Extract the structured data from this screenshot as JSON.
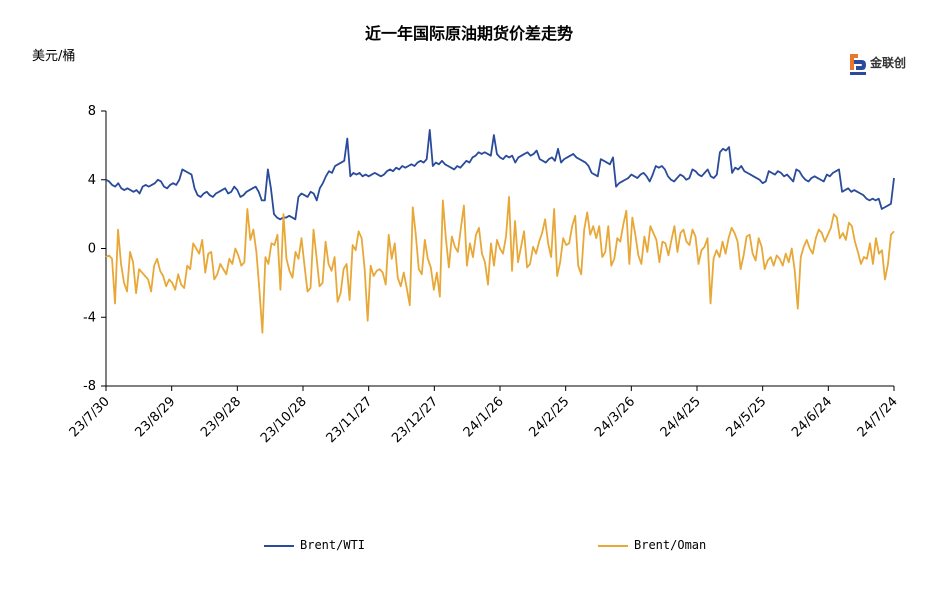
{
  "chart_data": {
    "type": "line",
    "title": "近一年国际原油期货价差走势",
    "ylabel": "美元/桶",
    "ylim": [
      -8,
      8
    ],
    "yticks": [
      8,
      4,
      0,
      -4,
      -8
    ],
    "x_tick_labels": [
      "23/7/30",
      "23/8/29",
      "23/9/28",
      "23/10/28",
      "23/11/27",
      "23/12/27",
      "24/1/26",
      "24/2/25",
      "24/3/26",
      "24/4/25",
      "24/5/25",
      "24/6/24",
      "24/7/24"
    ],
    "legend_position": "bottom",
    "grid": false,
    "series": [
      {
        "name": "Brent/WTI",
        "color": "#2a4b9b",
        "values": [
          4.0,
          3.9,
          3.7,
          3.6,
          3.8,
          3.5,
          3.4,
          3.5,
          3.4,
          3.3,
          3.4,
          3.2,
          3.6,
          3.7,
          3.6,
          3.7,
          3.8,
          4.0,
          3.9,
          3.6,
          3.5,
          3.7,
          3.8,
          3.7,
          4.0,
          4.6,
          4.5,
          4.4,
          4.3,
          3.5,
          3.1,
          3.0,
          3.2,
          3.3,
          3.1,
          3.0,
          3.2,
          3.3,
          3.4,
          3.5,
          3.2,
          3.3,
          3.6,
          3.4,
          3.0,
          3.1,
          3.3,
          3.4,
          3.5,
          3.6,
          3.3,
          2.8,
          2.8,
          4.6,
          3.5,
          2.0,
          1.8,
          1.7,
          1.8,
          1.8,
          1.9,
          1.8,
          1.7,
          3.0,
          3.2,
          3.1,
          3.0,
          3.3,
          3.2,
          2.8,
          3.5,
          3.8,
          4.2,
          4.5,
          4.4,
          4.8,
          4.9,
          5.0,
          5.1,
          6.4,
          4.2,
          4.4,
          4.3,
          4.4,
          4.2,
          4.3,
          4.2,
          4.3,
          4.4,
          4.3,
          4.2,
          4.3,
          4.5,
          4.6,
          4.5,
          4.7,
          4.6,
          4.8,
          4.7,
          4.8,
          4.9,
          4.8,
          5.0,
          5.1,
          5.0,
          5.2,
          6.9,
          4.8,
          5.0,
          4.9,
          5.1,
          4.9,
          4.8,
          4.7,
          4.6,
          4.8,
          4.7,
          4.9,
          5.1,
          5.0,
          5.3,
          5.4,
          5.6,
          5.5,
          5.6,
          5.5,
          5.4,
          6.6,
          5.5,
          5.3,
          5.2,
          5.4,
          5.3,
          5.4,
          5.0,
          5.3,
          5.4,
          5.5,
          5.6,
          5.4,
          5.5,
          5.7,
          5.2,
          5.1,
          5.0,
          5.2,
          5.3,
          5.1,
          5.8,
          5.0,
          5.2,
          5.3,
          5.4,
          5.5,
          5.3,
          5.2,
          5.1,
          5.0,
          4.8,
          4.4,
          4.3,
          4.2,
          5.2,
          5.1,
          5.0,
          4.9,
          5.3,
          3.6,
          3.8,
          3.9,
          4.0,
          4.1,
          4.3,
          4.2,
          4.1,
          4.3,
          4.4,
          4.2,
          3.9,
          4.3,
          4.8,
          4.7,
          4.8,
          4.6,
          4.2,
          4.0,
          3.9,
          4.1,
          4.3,
          4.2,
          4.0,
          4.1,
          4.6,
          4.5,
          4.3,
          4.2,
          4.4,
          4.6,
          4.2,
          4.1,
          4.3,
          5.6,
          5.8,
          5.7,
          5.9,
          4.4,
          4.7,
          4.6,
          4.8,
          4.5,
          4.4,
          4.3,
          4.2,
          4.1,
          4.0,
          3.8,
          3.9,
          4.5,
          4.4,
          4.3,
          4.5,
          4.4,
          4.2,
          4.3,
          4.1,
          3.9,
          4.6,
          4.5,
          4.2,
          4.0,
          3.9,
          4.1,
          4.2,
          4.1,
          4.0,
          3.9,
          4.3,
          4.2,
          4.4,
          4.5,
          4.6,
          3.3,
          3.4,
          3.5,
          3.3,
          3.4,
          3.3,
          3.2,
          3.1,
          2.9,
          2.8,
          2.9,
          2.8,
          2.9,
          2.3,
          2.4,
          2.5,
          2.6,
          4.1
        ]
      },
      {
        "name": "Brent/Oman",
        "color": "#e8a838",
        "values": [
          -0.5,
          -0.4,
          -0.6,
          -3.2,
          1.1,
          -0.9,
          -2.0,
          -2.5,
          -0.2,
          -0.8,
          -2.6,
          -1.2,
          -1.4,
          -1.6,
          -1.8,
          -2.5,
          -1.0,
          -0.6,
          -1.3,
          -1.6,
          -2.2,
          -1.8,
          -2.0,
          -2.4,
          -1.5,
          -2.1,
          -2.3,
          -1.0,
          -1.2,
          0.3,
          0.0,
          -0.3,
          0.5,
          -1.4,
          -0.3,
          -0.2,
          -1.8,
          -1.5,
          -0.9,
          -1.2,
          -1.5,
          -0.6,
          -0.9,
          0.0,
          -0.4,
          -1.0,
          -0.8,
          2.3,
          0.5,
          1.1,
          -0.2,
          -2.4,
          -4.9,
          -0.5,
          -0.9,
          0.3,
          0.2,
          0.8,
          -2.4,
          2.0,
          -0.6,
          -1.3,
          -1.7,
          -0.2,
          -0.6,
          0.6,
          -1.0,
          -2.5,
          -2.3,
          1.1,
          -0.5,
          -2.2,
          -2.0,
          0.4,
          -0.9,
          -1.3,
          -0.5,
          -3.1,
          -2.6,
          -1.2,
          -0.9,
          -3.0,
          0.2,
          -0.1,
          1.0,
          0.6,
          -1.2,
          -4.2,
          -1.0,
          -1.6,
          -1.3,
          -1.2,
          -1.4,
          -2.1,
          0.8,
          -0.6,
          0.3,
          -1.7,
          -2.2,
          -1.4,
          -2.3,
          -3.3,
          2.4,
          0.8,
          -1.2,
          -1.5,
          0.5,
          -0.6,
          -1.1,
          -2.4,
          -1.4,
          -2.8,
          2.8,
          0.6,
          -1.1,
          0.7,
          0.1,
          -0.2,
          1.2,
          2.5,
          -1.0,
          0.3,
          -0.5,
          0.8,
          1.2,
          -0.3,
          -0.8,
          -2.1,
          0.3,
          -1.0,
          0.5,
          0.0,
          -0.3,
          0.7,
          3.0,
          -1.3,
          1.6,
          -0.8,
          0.1,
          1.0,
          -1.1,
          -0.9,
          0.1,
          -0.3,
          0.4,
          0.9,
          1.7,
          0.3,
          -0.5,
          2.3,
          -1.6,
          -0.8,
          0.6,
          0.2,
          0.3,
          1.3,
          1.9,
          -1.0,
          -1.5,
          1.1,
          2.1,
          0.8,
          1.3,
          0.6,
          1.3,
          -0.5,
          -0.2,
          1.3,
          -1.0,
          -0.6,
          0.6,
          0.4,
          1.4,
          2.2,
          -0.9,
          1.8,
          0.8,
          -0.4,
          -0.9,
          0.7,
          -0.2,
          1.3,
          0.9,
          0.5,
          -0.8,
          0.4,
          0.3,
          -0.4,
          0.5,
          1.3,
          -0.2,
          0.9,
          1.1,
          0.4,
          0.2,
          1.1,
          0.7,
          -0.9,
          -0.1,
          0.1,
          0.6,
          -3.2,
          -0.6,
          -0.1,
          -0.5,
          0.4,
          -0.3,
          0.6,
          1.2,
          0.9,
          0.4,
          -1.2,
          -0.4,
          0.7,
          0.8,
          -0.3,
          -0.7,
          0.6,
          0.1,
          -1.2,
          -0.7,
          -0.5,
          -1.0,
          -0.4,
          -0.6,
          -1.0,
          -0.3,
          -0.8,
          0.0,
          -1.3,
          -3.5,
          -0.5,
          0.1,
          0.5,
          0.0,
          -0.3,
          0.6,
          1.1,
          0.9,
          0.4,
          0.8,
          1.2,
          2.0,
          1.8,
          0.6,
          0.9,
          0.5,
          1.5,
          1.3,
          0.4,
          -0.2,
          -0.9,
          -0.5,
          -0.6,
          0.3,
          -0.9,
          0.6,
          -0.3,
          -0.1,
          -1.8,
          -0.9,
          0.8,
          1.0
        ]
      }
    ]
  },
  "logo": {
    "text": "金联创"
  }
}
